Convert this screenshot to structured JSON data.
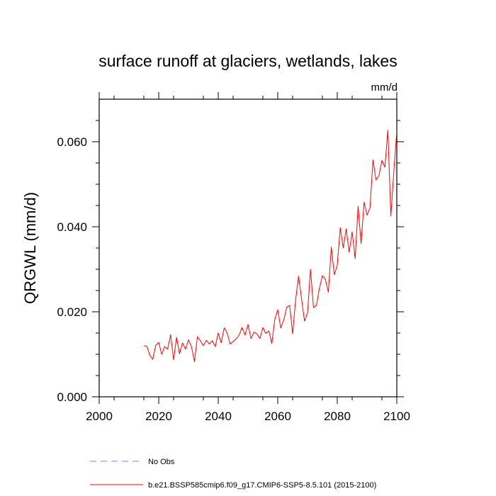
{
  "chart_data": {
    "type": "line",
    "title": "surface runoff at glaciers, wetlands, lakes",
    "units": "mm/d",
    "ylabel": "QRGWL  (mm/d)",
    "xlabel": "",
    "xlim": [
      2000,
      2100
    ],
    "ylim": [
      0.0,
      0.07
    ],
    "x_ticks": [
      2000,
      2020,
      2040,
      2060,
      2080,
      2100
    ],
    "x_tick_labels": [
      "2000",
      "2020",
      "2040",
      "2060",
      "2080",
      "2100"
    ],
    "y_ticks": [
      0.0,
      0.02,
      0.04,
      0.06
    ],
    "y_tick_labels": [
      "0.000",
      "0.020",
      "0.040",
      "0.060"
    ],
    "grid": false,
    "legend_position": "bottom",
    "legend": [
      {
        "label": "No Obs",
        "color": "#7f7fff",
        "style": "dashed"
      },
      {
        "label": "b.e21.BSSP585cmip6.f09_g17.CMIP6-SSP5-8.5.101 (2015-2100)",
        "color": "#ff0000",
        "style": "solid"
      }
    ],
    "series": [
      {
        "name": "b.e21.BSSP585cmip6.f09_g17.CMIP6-SSP5-8.5.101 (2015-2100)",
        "color": "#ff0000",
        "x": [
          2015,
          2016,
          2017,
          2018,
          2019,
          2020,
          2021,
          2022,
          2023,
          2024,
          2025,
          2026,
          2027,
          2028,
          2029,
          2030,
          2031,
          2032,
          2033,
          2034,
          2035,
          2036,
          2037,
          2038,
          2039,
          2040,
          2041,
          2042,
          2043,
          2044,
          2045,
          2046,
          2047,
          2048,
          2049,
          2050,
          2051,
          2052,
          2053,
          2054,
          2055,
          2056,
          2057,
          2058,
          2059,
          2060,
          2061,
          2062,
          2063,
          2064,
          2065,
          2066,
          2067,
          2068,
          2069,
          2070,
          2071,
          2072,
          2073,
          2074,
          2075,
          2076,
          2077,
          2078,
          2079,
          2080,
          2081,
          2082,
          2083,
          2084,
          2085,
          2086,
          2087,
          2088,
          2089,
          2090,
          2091,
          2092,
          2093,
          2094,
          2095,
          2096,
          2097,
          2098,
          2099,
          2100
        ],
        "values": [
          0.012,
          0.0119,
          0.0098,
          0.0088,
          0.0121,
          0.0128,
          0.01,
          0.0118,
          0.0112,
          0.0146,
          0.0087,
          0.014,
          0.0101,
          0.0127,
          0.0112,
          0.0134,
          0.0118,
          0.0083,
          0.0141,
          0.0132,
          0.012,
          0.0133,
          0.0124,
          0.0132,
          0.0118,
          0.015,
          0.0127,
          0.0162,
          0.015,
          0.0124,
          0.013,
          0.0136,
          0.0145,
          0.0163,
          0.0145,
          0.017,
          0.0137,
          0.0152,
          0.0148,
          0.0137,
          0.0163,
          0.0149,
          0.0155,
          0.0125,
          0.0182,
          0.0205,
          0.0162,
          0.018,
          0.0211,
          0.0215,
          0.0148,
          0.0228,
          0.0284,
          0.023,
          0.0178,
          0.0197,
          0.03,
          0.021,
          0.0215,
          0.0255,
          0.0285,
          0.0276,
          0.0246,
          0.0352,
          0.0287,
          0.031,
          0.0398,
          0.035,
          0.0395,
          0.034,
          0.0388,
          0.0325,
          0.0448,
          0.036,
          0.0458,
          0.0427,
          0.0445,
          0.0557,
          0.051,
          0.052,
          0.0556,
          0.054,
          0.0627,
          0.0425,
          0.053,
          0.0625
        ]
      }
    ]
  }
}
